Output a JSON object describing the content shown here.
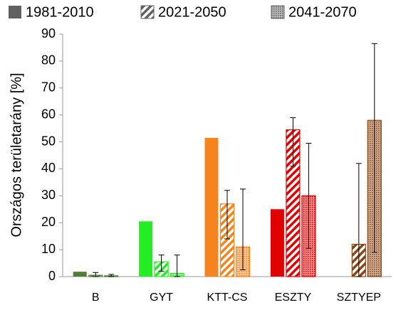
{
  "chart_data": {
    "type": "bar",
    "y_label": "Országos területarány [%]",
    "categories": [
      "B",
      "GYT",
      "KTT-CS",
      "ESZTY",
      "SZTYEP"
    ],
    "category_colors": [
      "#4f7f35",
      "#22ee22",
      "#f5841f",
      "#e00000",
      "#8b4513"
    ],
    "legend_color": "#606060",
    "series": [
      {
        "name": "1981-2010",
        "pattern": "solid",
        "values": [
          1.8,
          20.5,
          51.5,
          25,
          0
        ]
      },
      {
        "name": "2021-2050",
        "pattern": "diagonal",
        "values": [
          0.5,
          5.5,
          27,
          54.5,
          12
        ],
        "err_low": [
          0,
          2,
          14,
          41,
          0
        ],
        "err_high": [
          1.5,
          8,
          32,
          59,
          42
        ]
      },
      {
        "name": "2041-2070",
        "pattern": "dots",
        "values": [
          0.3,
          1.2,
          11,
          30,
          58
        ],
        "err_low": [
          0,
          0,
          2.5,
          10.5,
          9
        ],
        "err_high": [
          0.8,
          8,
          32.5,
          49.5,
          86.5
        ]
      }
    ],
    "ylim": [
      0,
      90
    ],
    "yticks": [
      0,
      10,
      20,
      30,
      40,
      50,
      60,
      70,
      80,
      90
    ],
    "grid": false
  }
}
